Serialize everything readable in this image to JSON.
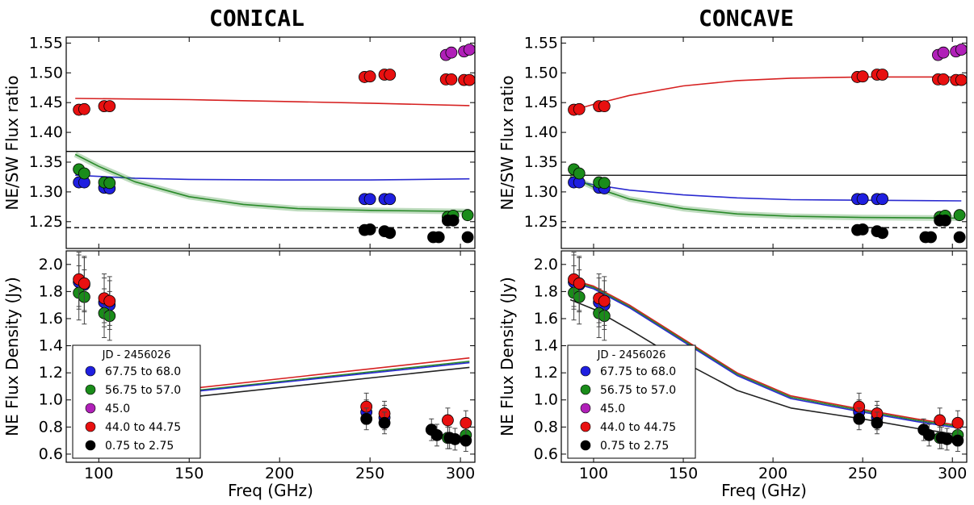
{
  "chart_data": [
    {
      "type": "scatter",
      "title": "CONICAL",
      "xlabel": "Freq (GHz)",
      "x_ticks": [
        100,
        150,
        200,
        250,
        300
      ],
      "xlim": [
        82,
        308
      ],
      "legend": {
        "title": "JD - 2456026",
        "placement": "lower-left",
        "entries": [
          {
            "label": "67.75 to 68.0",
            "color": "#1f1fe0"
          },
          {
            "label": "56.75 to 57.0",
            "color": "#1a8c1a"
          },
          {
            "label": "45.0",
            "color": "#b020b8"
          },
          {
            "label": "44.0 to 44.75",
            "color": "#e81010"
          },
          {
            "label": "0.75 to 2.75",
            "color": "#000000"
          }
        ]
      },
      "top": {
        "ylabel": "NE/SW Flux ratio",
        "ylim": [
          1.205,
          1.56
        ],
        "y_ticks": [
          "1.25",
          "1.30",
          "1.35",
          "1.40",
          "1.45",
          "1.50",
          "1.55"
        ],
        "reference_lines": [
          {
            "y": 1.368,
            "style": "solid",
            "color": "#000000"
          },
          {
            "y": 1.24,
            "style": "dashed",
            "color": "#000000"
          }
        ],
        "models": [
          {
            "color": "#d62020",
            "x": [
              87,
              150,
              200,
              250,
              305
            ],
            "y": [
              1.457,
              1.455,
              1.452,
              1.449,
              1.445
            ]
          },
          {
            "color": "#2a2ad0",
            "x": [
              87,
              120,
              150,
              200,
              250,
              305
            ],
            "y": [
              1.328,
              1.323,
              1.321,
              1.32,
              1.32,
              1.322
            ]
          },
          {
            "color": "#2a8a2a",
            "band": true,
            "x": [
              87,
              100,
              120,
              150,
              180,
              210,
              250,
              305
            ],
            "y": [
              1.363,
              1.343,
              1.317,
              1.292,
              1.279,
              1.272,
              1.269,
              1.267
            ]
          }
        ],
        "points": [
          {
            "series": "67.75 to 68.0",
            "x": [
              89,
              92,
              103,
              106,
              247,
              250,
              258,
              261
            ],
            "y": [
              1.316,
              1.316,
              1.307,
              1.306,
              1.288,
              1.288,
              1.288,
              1.288
            ]
          },
          {
            "series": "56.75 to 57.0",
            "x": [
              89,
              92,
              103,
              106,
              293,
              296,
              304
            ],
            "y": [
              1.338,
              1.331,
              1.316,
              1.315,
              1.258,
              1.26,
              1.261
            ]
          },
          {
            "series": "45.0",
            "x": [
              292,
              295,
              302,
              305
            ],
            "y": [
              1.53,
              1.534,
              1.536,
              1.539
            ]
          },
          {
            "series": "44.0 to 44.75",
            "x": [
              89,
              92,
              103,
              106,
              247,
              250,
              258,
              261,
              292,
              295,
              302,
              305
            ],
            "y": [
              1.438,
              1.439,
              1.444,
              1.444,
              1.493,
              1.494,
              1.497,
              1.497,
              1.489,
              1.489,
              1.488,
              1.488
            ]
          },
          {
            "series": "0.75 to 2.75",
            "x": [
              247,
              250,
              258,
              261,
              285,
              288,
              293,
              296,
              304
            ],
            "y": [
              1.236,
              1.237,
              1.234,
              1.231,
              1.224,
              1.224,
              1.252,
              1.252,
              1.224
            ]
          }
        ]
      },
      "bottom": {
        "ylabel": "NE Flux Density (Jy)",
        "ylim": [
          0.54,
          2.1
        ],
        "y_ticks": [
          "0.6",
          "0.8",
          "1.0",
          "1.2",
          "1.4",
          "1.6",
          "1.8",
          "2.0"
        ],
        "models": [
          {
            "color": "#d62020",
            "x": [
              87,
              305
            ],
            "y": [
              0.99,
              1.31
            ]
          },
          {
            "color": "#2a8a2a",
            "x": [
              87,
              305
            ],
            "y": [
              0.975,
              1.285
            ]
          },
          {
            "color": "#2a2ad0",
            "x": [
              87,
              305
            ],
            "y": [
              0.97,
              1.275
            ]
          },
          {
            "color": "#222222",
            "x": [
              87,
              305
            ],
            "y": [
              0.93,
              1.24
            ]
          }
        ],
        "points": [
          {
            "series": "67.75 to 68.0",
            "x": [
              89,
              92,
              103,
              106,
              248,
              258
            ],
            "y": [
              1.87,
              1.85,
              1.72,
              1.7,
              0.91,
              0.87
            ],
            "err": [
              0.2,
              0.2,
              0.18,
              0.18,
              0.09,
              0.09
            ]
          },
          {
            "series": "56.75 to 57.0",
            "x": [
              89,
              92,
              103,
              106,
              293,
              303
            ],
            "y": [
              1.79,
              1.76,
              1.64,
              1.62,
              0.72,
              0.74
            ],
            "err": [
              0.2,
              0.2,
              0.18,
              0.18,
              0.08,
              0.08
            ]
          },
          {
            "series": "44.0 to 44.75",
            "x": [
              89,
              92,
              103,
              106,
              248,
              258,
              293,
              303
            ],
            "y": [
              1.89,
              1.86,
              1.75,
              1.73,
              0.95,
              0.9,
              0.85,
              0.83
            ],
            "err": [
              0.2,
              0.2,
              0.18,
              0.18,
              0.1,
              0.09,
              0.09,
              0.09
            ]
          },
          {
            "series": "0.75 to 2.75",
            "x": [
              248,
              258,
              284,
              287,
              294,
              297,
              303
            ],
            "y": [
              0.86,
              0.83,
              0.78,
              0.74,
              0.72,
              0.71,
              0.7
            ],
            "err": [
              0.08,
              0.08,
              0.08,
              0.08,
              0.08,
              0.08,
              0.08
            ]
          }
        ]
      }
    },
    {
      "type": "scatter",
      "title": "CONCAVE",
      "xlabel": "Freq (GHz)",
      "x_ticks": [
        100,
        150,
        200,
        250,
        300
      ],
      "xlim": [
        82,
        308
      ],
      "legend": {
        "title": "JD - 2456026",
        "placement": "lower-left",
        "entries": [
          {
            "label": "67.75 to 68.0",
            "color": "#1f1fe0"
          },
          {
            "label": "56.75 to 57.0",
            "color": "#1a8c1a"
          },
          {
            "label": "45.0",
            "color": "#b020b8"
          },
          {
            "label": "44.0 to 44.75",
            "color": "#e81010"
          },
          {
            "label": "0.75 to 2.75",
            "color": "#000000"
          }
        ]
      },
      "top": {
        "ylabel": "NE/SW Flux ratio",
        "ylim": [
          1.205,
          1.56
        ],
        "y_ticks": [
          "1.25",
          "1.30",
          "1.35",
          "1.40",
          "1.45",
          "1.50",
          "1.55"
        ],
        "reference_lines": [
          {
            "y": 1.328,
            "style": "solid",
            "color": "#000000"
          },
          {
            "y": 1.24,
            "style": "dashed",
            "color": "#000000"
          }
        ],
        "models": [
          {
            "color": "#d62020",
            "x": [
              87,
              100,
              120,
              150,
              180,
              210,
              250,
              305
            ],
            "y": [
              1.436,
              1.447,
              1.462,
              1.478,
              1.487,
              1.491,
              1.493,
              1.493
            ]
          },
          {
            "color": "#2a2ad0",
            "x": [
              87,
              100,
              120,
              150,
              180,
              210,
              250,
              305
            ],
            "y": [
              1.32,
              1.312,
              1.303,
              1.295,
              1.29,
              1.287,
              1.286,
              1.285
            ]
          },
          {
            "color": "#2a8a2a",
            "band": true,
            "x": [
              87,
              100,
              120,
              150,
              180,
              210,
              250,
              305
            ],
            "y": [
              1.326,
              1.308,
              1.288,
              1.272,
              1.263,
              1.259,
              1.257,
              1.256
            ]
          }
        ],
        "points": [
          {
            "series": "67.75 to 68.0",
            "x": [
              89,
              92,
              103,
              106,
              247,
              250,
              258,
              261
            ],
            "y": [
              1.316,
              1.316,
              1.307,
              1.306,
              1.288,
              1.288,
              1.288,
              1.288
            ]
          },
          {
            "series": "56.75 to 57.0",
            "x": [
              89,
              92,
              103,
              106,
              293,
              296,
              304
            ],
            "y": [
              1.338,
              1.331,
              1.316,
              1.315,
              1.258,
              1.26,
              1.261
            ]
          },
          {
            "series": "45.0",
            "x": [
              292,
              295,
              302,
              305
            ],
            "y": [
              1.53,
              1.534,
              1.536,
              1.539
            ]
          },
          {
            "series": "44.0 to 44.75",
            "x": [
              89,
              92,
              103,
              106,
              247,
              250,
              258,
              261,
              292,
              295,
              302,
              305
            ],
            "y": [
              1.438,
              1.439,
              1.444,
              1.444,
              1.493,
              1.494,
              1.497,
              1.497,
              1.489,
              1.489,
              1.488,
              1.488
            ]
          },
          {
            "series": "0.75 to 2.75",
            "x": [
              247,
              250,
              258,
              261,
              285,
              288,
              293,
              296,
              304
            ],
            "y": [
              1.236,
              1.237,
              1.234,
              1.231,
              1.224,
              1.224,
              1.252,
              1.252,
              1.224
            ]
          }
        ]
      },
      "bottom": {
        "ylabel": "NE Flux Density (Jy)",
        "ylim": [
          0.54,
          2.1
        ],
        "y_ticks": [
          "0.6",
          "0.8",
          "1.0",
          "1.2",
          "1.4",
          "1.6",
          "1.8",
          "2.0"
        ],
        "models": [
          {
            "color": "#d62020",
            "x": [
              87,
              100,
              120,
              150,
              180,
              210,
              250,
              280,
              305
            ],
            "y": [
              1.89,
              1.84,
              1.7,
              1.45,
              1.2,
              1.03,
              0.93,
              0.86,
              0.81
            ]
          },
          {
            "color": "#2a8a2a",
            "x": [
              87,
              100,
              120,
              150,
              180,
              210,
              250,
              280,
              305
            ],
            "y": [
              1.88,
              1.83,
              1.69,
              1.44,
              1.19,
              1.02,
              0.92,
              0.85,
              0.8
            ]
          },
          {
            "color": "#2a2ad0",
            "x": [
              87,
              100,
              120,
              150,
              180,
              210,
              250,
              280,
              305
            ],
            "y": [
              1.87,
              1.82,
              1.68,
              1.43,
              1.18,
              1.01,
              0.91,
              0.84,
              0.79
            ]
          },
          {
            "color": "#222222",
            "x": [
              87,
              100,
              120,
              150,
              180,
              210,
              250,
              280,
              305
            ],
            "y": [
              1.74,
              1.67,
              1.52,
              1.28,
              1.07,
              0.94,
              0.86,
              0.79,
              0.74
            ]
          }
        ],
        "points": [
          {
            "series": "67.75 to 68.0",
            "x": [
              89,
              92,
              103,
              106,
              248,
              258
            ],
            "y": [
              1.87,
              1.85,
              1.72,
              1.7,
              0.91,
              0.87
            ],
            "err": [
              0.2,
              0.2,
              0.18,
              0.18,
              0.09,
              0.09
            ]
          },
          {
            "series": "56.75 to 57.0",
            "x": [
              89,
              92,
              103,
              106,
              293,
              303
            ],
            "y": [
              1.79,
              1.76,
              1.64,
              1.62,
              0.72,
              0.74
            ],
            "err": [
              0.2,
              0.2,
              0.18,
              0.18,
              0.08,
              0.08
            ]
          },
          {
            "series": "44.0 to 44.75",
            "x": [
              89,
              92,
              103,
              106,
              248,
              258,
              293,
              303
            ],
            "y": [
              1.89,
              1.86,
              1.75,
              1.73,
              0.95,
              0.9,
              0.85,
              0.83
            ],
            "err": [
              0.2,
              0.2,
              0.18,
              0.18,
              0.1,
              0.09,
              0.09,
              0.09
            ]
          },
          {
            "series": "0.75 to 2.75",
            "x": [
              248,
              258,
              284,
              287,
              294,
              297,
              303
            ],
            "y": [
              0.86,
              0.83,
              0.78,
              0.74,
              0.72,
              0.71,
              0.7
            ],
            "err": [
              0.08,
              0.08,
              0.08,
              0.08,
              0.08,
              0.08,
              0.08
            ]
          }
        ]
      }
    }
  ]
}
